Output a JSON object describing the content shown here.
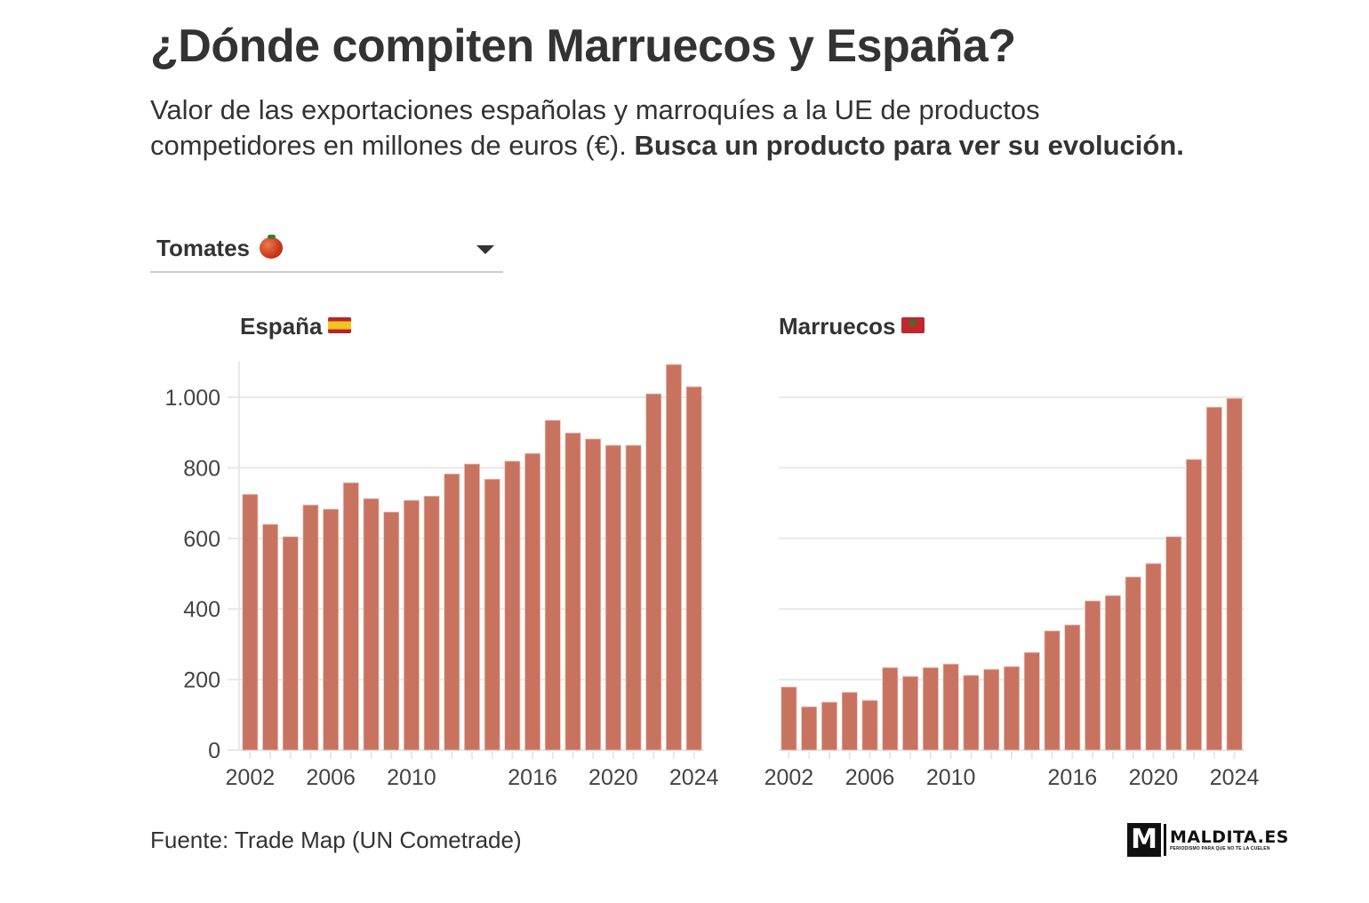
{
  "header": {
    "title": "¿Dónde compiten Marruecos y España?",
    "subtitle_plain": "Valor de las exportaciones españolas y marroquíes a la UE de productos competidores en millones de euros (€). ",
    "subtitle_bold": "Busca un producto para ver su evolución."
  },
  "selector": {
    "selected": "Tomates",
    "emoji_icon": "tomato-icon"
  },
  "panels": [
    {
      "title": "España",
      "flag_icon": "spain-flag-icon"
    },
    {
      "title": "Marruecos",
      "flag_icon": "morocco-flag-icon"
    }
  ],
  "colors": {
    "bar": "#c87360",
    "grid": "#e8e8e8",
    "text": "#333333"
  },
  "chart_data": [
    {
      "type": "bar",
      "title": "España",
      "xlabel": "",
      "ylabel": "",
      "ylim": [
        0,
        1100
      ],
      "yticks": [
        0,
        200,
        400,
        600,
        800,
        1000
      ],
      "ytick_labels": [
        "0",
        "200",
        "400",
        "600",
        "800",
        "1.000"
      ],
      "xtick_labels": [
        "2002",
        "2006",
        "2010",
        "2016",
        "2020",
        "2024"
      ],
      "grid": true,
      "categories": [
        "2002",
        "2003",
        "2004",
        "2005",
        "2006",
        "2007",
        "2008",
        "2009",
        "2010",
        "2011",
        "2012",
        "2013",
        "2014",
        "2015",
        "2016",
        "2017",
        "2018",
        "2019",
        "2020",
        "2021",
        "2022",
        "2023",
        "2024"
      ],
      "values": [
        725,
        640,
        605,
        695,
        683,
        758,
        713,
        675,
        708,
        720,
        783,
        811,
        768,
        819,
        841,
        935,
        899,
        882,
        864,
        864,
        1010,
        1093,
        1030
      ]
    },
    {
      "type": "bar",
      "title": "Marruecos",
      "xlabel": "",
      "ylabel": "",
      "ylim": [
        0,
        1100
      ],
      "yticks": [
        0,
        200,
        400,
        600,
        800,
        1000
      ],
      "ytick_labels": [],
      "xtick_labels": [
        "2002",
        "2006",
        "2010",
        "2016",
        "2020",
        "2024"
      ],
      "grid": true,
      "categories": [
        "2002",
        "2003",
        "2004",
        "2005",
        "2006",
        "2007",
        "2008",
        "2009",
        "2010",
        "2011",
        "2012",
        "2013",
        "2014",
        "2015",
        "2016",
        "2017",
        "2018",
        "2019",
        "2020",
        "2021",
        "2022",
        "2023",
        "2024"
      ],
      "values": [
        179,
        123,
        136,
        164,
        141,
        234,
        209,
        234,
        244,
        212,
        229,
        237,
        277,
        338,
        355,
        423,
        438,
        491,
        529,
        605,
        824,
        972,
        997
      ]
    }
  ],
  "footer": {
    "source": "Fuente: Trade Map (UN Cometrade)",
    "logo_letter": "M",
    "logo_brand": "MALDITA.ES",
    "logo_tagline": "PERIODISMO PARA QUE NO TE LA CUELEN"
  }
}
